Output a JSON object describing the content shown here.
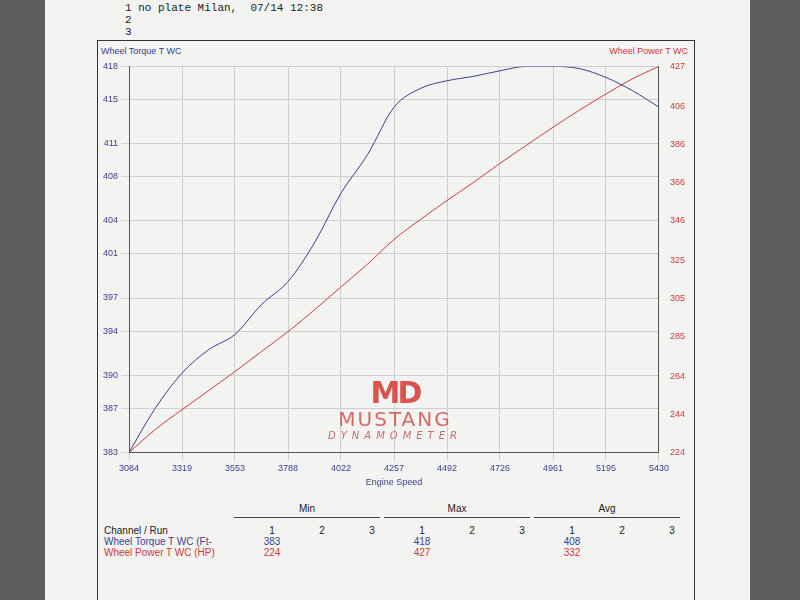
{
  "header": [
    "1 no plate Milan,  07/14 12:38",
    "2",
    "3"
  ],
  "chart_data": {
    "type": "line",
    "x": [
      3084,
      3200,
      3319,
      3436,
      3553,
      3670,
      3788,
      3905,
      4022,
      4140,
      4257,
      4374,
      4492,
      4609,
      4726,
      4843,
      4961,
      5078,
      5195,
      5313,
      5430
    ],
    "series": [
      {
        "name": "Wheel Torque T WC",
        "color": "#3b3f8f",
        "axis": "y",
        "values": [
          383,
          387,
          390.2,
          392.3,
          393.7,
          396.4,
          398.5,
          402,
          406.5,
          410,
          414.3,
          416,
          416.7,
          417.1,
          417.6,
          418,
          418,
          417.8,
          417,
          415.8,
          414.3
        ]
      },
      {
        "name": "Wheel Power T WC",
        "color": "#cc3a3a",
        "axis": "y2",
        "values": [
          224,
          236,
          246.5,
          256.5,
          266.5,
          277,
          287.5,
          299,
          311,
          323,
          336,
          346.5,
          356.5,
          366,
          376,
          385.5,
          395,
          404,
          412.5,
          420.5,
          427
        ]
      }
    ],
    "xlabel": "Engine Speed",
    "xlim": [
      3084,
      5430
    ],
    "xticks": [
      3084,
      3319,
      3553,
      3788,
      4022,
      4257,
      4492,
      4726,
      4961,
      5195,
      5430
    ],
    "ylim": [
      383,
      418
    ],
    "yticks": [
      383,
      387,
      390,
      394,
      397,
      401,
      404,
      408,
      411,
      415,
      418
    ],
    "y2lim": [
      224,
      427
    ],
    "y2ticks": [
      224,
      244,
      264,
      285,
      305,
      325,
      346,
      366,
      386,
      406,
      427
    ],
    "grid": true
  },
  "watermark": {
    "logo": "MD",
    "name": "MUSTANG",
    "sub": "DYNAMOMETER"
  },
  "table": {
    "head": "Channel / Run",
    "groups": [
      "Min",
      "Max",
      "Avg"
    ],
    "runs": [
      1,
      2,
      3
    ],
    "rows": [
      {
        "label": "Wheel Torque T WC (Ft-",
        "color": "#3b3f8f",
        "run1": [
          383,
          418,
          408
        ]
      },
      {
        "label": "Wheel Power T WC (HP)",
        "color": "#cc3a3a",
        "run1": [
          224,
          427,
          332
        ]
      }
    ]
  }
}
